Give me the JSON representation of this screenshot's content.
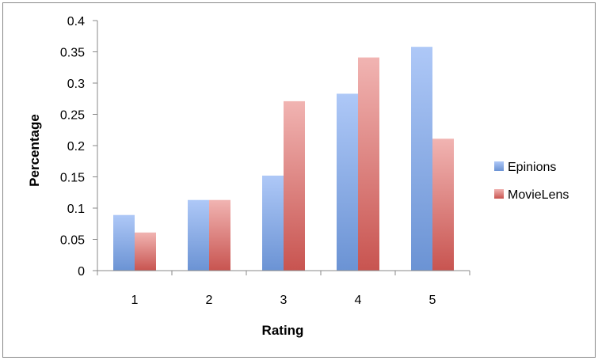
{
  "chart_data": {
    "type": "bar",
    "title": "",
    "xlabel": "Rating",
    "ylabel": "Percentage",
    "categories": [
      "1",
      "2",
      "3",
      "4",
      "5"
    ],
    "series": [
      {
        "name": "Epinions",
        "values": [
          0.089,
          0.113,
          0.152,
          0.283,
          0.358
        ]
      },
      {
        "name": "MovieLens",
        "values": [
          0.061,
          0.113,
          0.271,
          0.341,
          0.211
        ]
      }
    ],
    "ylim": [
      0,
      0.4
    ],
    "yticks": [
      "0",
      "0.05",
      "0.1",
      "0.15",
      "0.2",
      "0.25",
      "0.3",
      "0.35",
      "0.4"
    ],
    "grid": false,
    "legend": "right",
    "colors": {
      "Epinions": {
        "top": "#aec8f7",
        "bottom": "#6b93d4"
      },
      "MovieLens": {
        "top": "#f1b4b2",
        "bottom": "#c85450"
      },
      "axis": "#888888",
      "frame": "#888888"
    }
  }
}
